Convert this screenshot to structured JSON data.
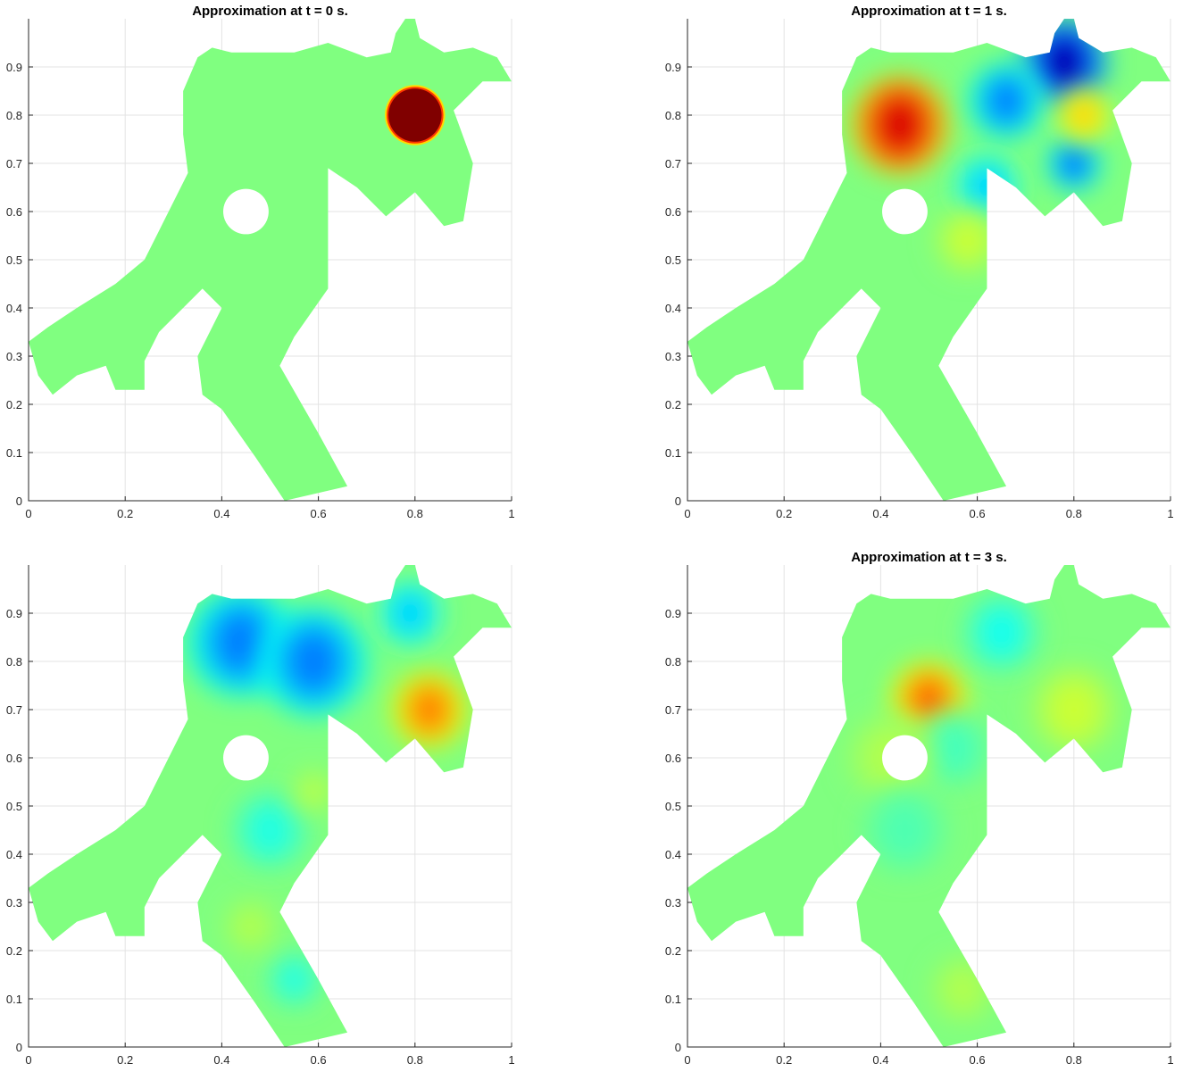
{
  "chart_data": [
    {
      "type": "heatmap",
      "title": "Approximation at t = 0 s.",
      "xlim": [
        0,
        1
      ],
      "ylim": [
        0,
        1
      ],
      "xticks": [
        "0",
        "0.2",
        "0.4",
        "0.6",
        "0.8",
        "1"
      ],
      "yticks": [
        "0",
        "0.1",
        "0.2",
        "0.3",
        "0.4",
        "0.5",
        "0.6",
        "0.7",
        "0.8",
        "0.9"
      ],
      "grid": true,
      "colormap": "jet",
      "background_color": "#80ff80",
      "features": [
        {
          "x": 0.8,
          "y": 0.8,
          "r": 0.055,
          "level": 1.0,
          "shape": "disc"
        }
      ]
    },
    {
      "type": "heatmap",
      "title": "Approximation at t = 1 s.",
      "xlim": [
        0,
        1
      ],
      "ylim": [
        0,
        1
      ],
      "xticks": [
        "0",
        "0.2",
        "0.4",
        "0.6",
        "0.8",
        "1"
      ],
      "yticks": [
        "0",
        "0.1",
        "0.2",
        "0.3",
        "0.4",
        "0.5",
        "0.6",
        "0.7",
        "0.8",
        "0.9"
      ],
      "grid": true,
      "colormap": "jet",
      "background_color": "#80ff80",
      "features": [
        {
          "x": 0.44,
          "y": 0.78,
          "r": 0.09,
          "level": 0.82
        },
        {
          "x": 0.78,
          "y": 0.91,
          "r": 0.08,
          "level": -0.9
        },
        {
          "x": 0.66,
          "y": 0.83,
          "r": 0.07,
          "level": -0.5
        },
        {
          "x": 0.8,
          "y": 0.7,
          "r": 0.05,
          "level": -0.55
        },
        {
          "x": 0.62,
          "y": 0.65,
          "r": 0.06,
          "level": -0.35
        },
        {
          "x": 0.82,
          "y": 0.8,
          "r": 0.05,
          "level": 0.35
        },
        {
          "x": 0.58,
          "y": 0.54,
          "r": 0.06,
          "level": 0.15
        }
      ]
    },
    {
      "type": "heatmap",
      "title": "",
      "xlim": [
        0,
        1
      ],
      "ylim": [
        0,
        1
      ],
      "xticks": [
        "0",
        "0.2",
        "0.4",
        "0.6",
        "0.8",
        "1"
      ],
      "yticks": [
        "0",
        "0.1",
        "0.2",
        "0.3",
        "0.4",
        "0.5",
        "0.6",
        "0.7",
        "0.8",
        "0.9"
      ],
      "grid": true,
      "colormap": "jet",
      "background_color": "#80ff80",
      "features": [
        {
          "x": 0.44,
          "y": 0.84,
          "r": 0.1,
          "level": -0.5
        },
        {
          "x": 0.59,
          "y": 0.8,
          "r": 0.1,
          "level": -0.5
        },
        {
          "x": 0.79,
          "y": 0.9,
          "r": 0.06,
          "level": -0.35
        },
        {
          "x": 0.83,
          "y": 0.7,
          "r": 0.07,
          "level": 0.5
        },
        {
          "x": 0.5,
          "y": 0.45,
          "r": 0.07,
          "level": -0.2
        },
        {
          "x": 0.55,
          "y": 0.14,
          "r": 0.05,
          "level": -0.2
        },
        {
          "x": 0.59,
          "y": 0.53,
          "r": 0.04,
          "level": 0.12
        },
        {
          "x": 0.46,
          "y": 0.25,
          "r": 0.05,
          "level": 0.1
        }
      ]
    },
    {
      "type": "heatmap",
      "title": "Approximation at t = 3 s.",
      "xlim": [
        0,
        1
      ],
      "ylim": [
        0,
        1
      ],
      "xticks": [
        "0",
        "0.2",
        "0.4",
        "0.6",
        "0.8",
        "1"
      ],
      "yticks": [
        "0",
        "0.1",
        "0.2",
        "0.3",
        "0.4",
        "0.5",
        "0.6",
        "0.7",
        "0.8",
        "0.9"
      ],
      "grid": true,
      "colormap": "jet",
      "background_color": "#80ff80",
      "features": [
        {
          "x": 0.5,
          "y": 0.72,
          "r": 0.07,
          "level": 0.55
        },
        {
          "x": 0.65,
          "y": 0.86,
          "r": 0.07,
          "level": -0.22
        },
        {
          "x": 0.55,
          "y": 0.62,
          "r": 0.07,
          "level": -0.12
        },
        {
          "x": 0.8,
          "y": 0.7,
          "r": 0.08,
          "level": 0.15
        },
        {
          "x": 0.42,
          "y": 0.6,
          "r": 0.08,
          "level": 0.1
        },
        {
          "x": 0.57,
          "y": 0.12,
          "r": 0.06,
          "level": 0.1
        },
        {
          "x": 0.45,
          "y": 0.45,
          "r": 0.08,
          "level": -0.1
        }
      ]
    }
  ]
}
